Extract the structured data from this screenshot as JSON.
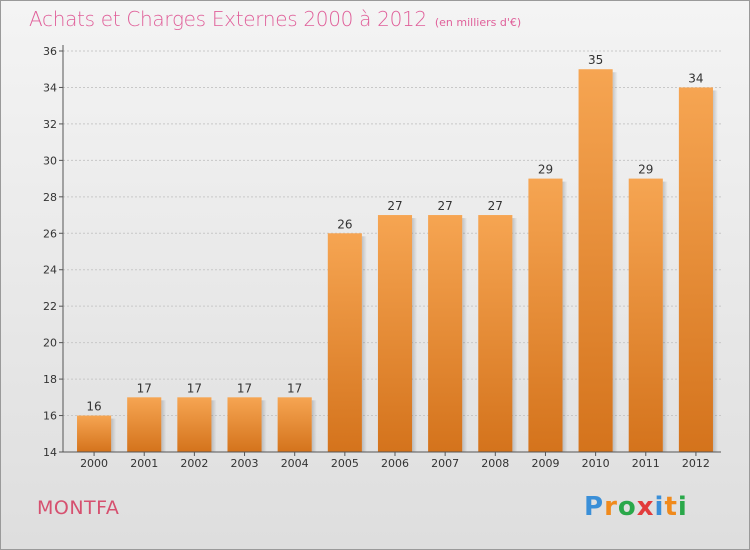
{
  "header": {
    "title": "Achats et Charges Externes 2000 à 2012",
    "unit": "(en milliers d'€)"
  },
  "footer": {
    "commune": "MONTFA",
    "brand": [
      "P",
      "r",
      "o",
      "x",
      "i",
      "t",
      "i"
    ],
    "brand_colors": [
      "#3a8fd8",
      "#f08a1c",
      "#2aa84a",
      "#e23c3c",
      "#3a8fd8",
      "#f08a1c",
      "#2aa84a"
    ]
  },
  "colors": {
    "bar_light": "#f6a552",
    "bar_dark": "#d4731c",
    "axis": "#555555",
    "grid": "#c8c8c8",
    "title": "#e0609a"
  },
  "chart_data": {
    "type": "bar",
    "title": "Achats et Charges Externes 2000 à 2012",
    "subtitle": "(en milliers d'€)",
    "categories": [
      "2000",
      "2001",
      "2002",
      "2003",
      "2004",
      "2005",
      "2006",
      "2007",
      "2008",
      "2009",
      "2010",
      "2011",
      "2012"
    ],
    "values": [
      16,
      17,
      17,
      17,
      17,
      26,
      27,
      27,
      27,
      29,
      35,
      29,
      34
    ],
    "ylim": [
      14,
      36
    ],
    "yticks": [
      14,
      16,
      18,
      20,
      22,
      24,
      26,
      28,
      30,
      32,
      34,
      36
    ],
    "grid": true,
    "data_labels": true
  }
}
